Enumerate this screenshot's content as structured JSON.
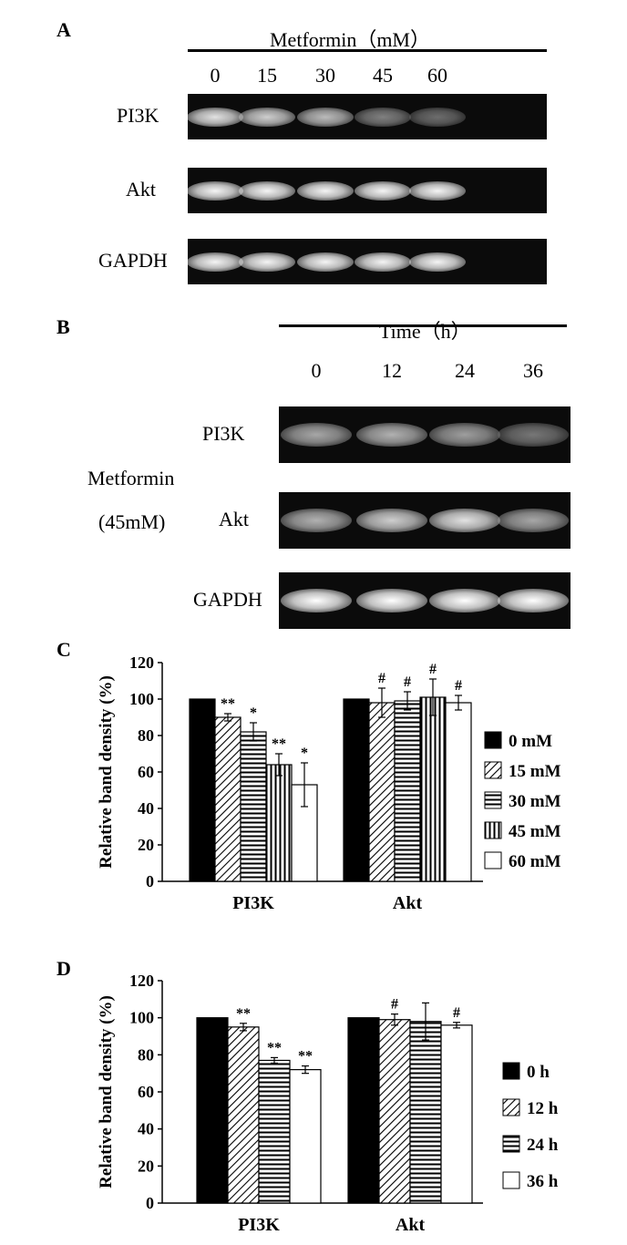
{
  "panel_labels": {
    "a": "A",
    "b": "B",
    "c": "C",
    "d": "D"
  },
  "panel_a": {
    "header": "Metformin（mM）",
    "lanes": [
      "0",
      "15",
      "30",
      "45",
      "60"
    ],
    "rows": [
      {
        "label": "PI3K",
        "intensities": [
          0.85,
          0.75,
          0.65,
          0.35,
          0.25
        ]
      },
      {
        "label": "Akt",
        "intensities": [
          0.95,
          0.95,
          0.95,
          0.95,
          0.95
        ]
      },
      {
        "label": "GAPDH",
        "intensities": [
          0.95,
          0.95,
          0.95,
          0.95,
          0.95
        ]
      }
    ]
  },
  "panel_b": {
    "header": "Time（h）",
    "lanes": [
      "0",
      "12",
      "24",
      "36"
    ],
    "side_label_line1": "Metformin",
    "side_label_line2": "(45mM)",
    "rows": [
      {
        "label": "PI3K",
        "intensities": [
          0.55,
          0.6,
          0.5,
          0.3
        ]
      },
      {
        "label": "Akt",
        "intensities": [
          0.6,
          0.75,
          0.85,
          0.55
        ]
      },
      {
        "label": "GAPDH",
        "intensities": [
          1.0,
          1.0,
          1.0,
          1.0
        ]
      }
    ]
  },
  "chart_data": [
    {
      "type": "bar",
      "panel": "C",
      "ylabel": "Relative band density (%)",
      "ylim": [
        0,
        120
      ],
      "yticks": [
        "0",
        "20",
        "40",
        "60",
        "80",
        "100",
        "120"
      ],
      "categories": [
        "PI3K",
        "Akt"
      ],
      "series": [
        {
          "name": "0 mM",
          "pattern": "solid",
          "values": [
            100,
            100
          ],
          "errors": [
            0,
            0
          ],
          "marks": [
            "",
            ""
          ]
        },
        {
          "name": "15 mM",
          "pattern": "diagonal",
          "values": [
            90,
            98
          ],
          "errors": [
            2,
            8
          ],
          "marks": [
            "**",
            "#"
          ]
        },
        {
          "name": "30 mM",
          "pattern": "horizontal",
          "values": [
            82,
            99
          ],
          "errors": [
            5,
            5
          ],
          "marks": [
            "*",
            "#"
          ]
        },
        {
          "name": "45 mM",
          "pattern": "vertical",
          "values": [
            64,
            101
          ],
          "errors": [
            6,
            10
          ],
          "marks": [
            "**",
            "#"
          ]
        },
        {
          "name": "60 mM",
          "pattern": "empty",
          "values": [
            53,
            98
          ],
          "errors": [
            12,
            4
          ],
          "marks": [
            "*",
            "#"
          ]
        }
      ],
      "legend": "right"
    },
    {
      "type": "bar",
      "panel": "D",
      "ylabel": "Relative band density (%)",
      "ylim": [
        0,
        120
      ],
      "yticks": [
        "0",
        "20",
        "40",
        "60",
        "80",
        "100",
        "120"
      ],
      "categories": [
        "PI3K",
        "Akt"
      ],
      "series": [
        {
          "name": "0 h",
          "pattern": "solid",
          "values": [
            100,
            100
          ],
          "errors": [
            0,
            0
          ],
          "marks": [
            "",
            ""
          ]
        },
        {
          "name": "12 h",
          "pattern": "diagonal",
          "values": [
            95,
            99
          ],
          "errors": [
            2,
            3
          ],
          "marks": [
            "**",
            "#"
          ]
        },
        {
          "name": "24 h",
          "pattern": "horizontal",
          "values": [
            77,
            98
          ],
          "errors": [
            1.5,
            10
          ],
          "marks": [
            "**",
            ""
          ]
        },
        {
          "name": "36 h",
          "pattern": "empty",
          "values": [
            72,
            96
          ],
          "errors": [
            2,
            1.5
          ],
          "marks": [
            "**",
            "#"
          ]
        }
      ],
      "legend": "right"
    }
  ]
}
